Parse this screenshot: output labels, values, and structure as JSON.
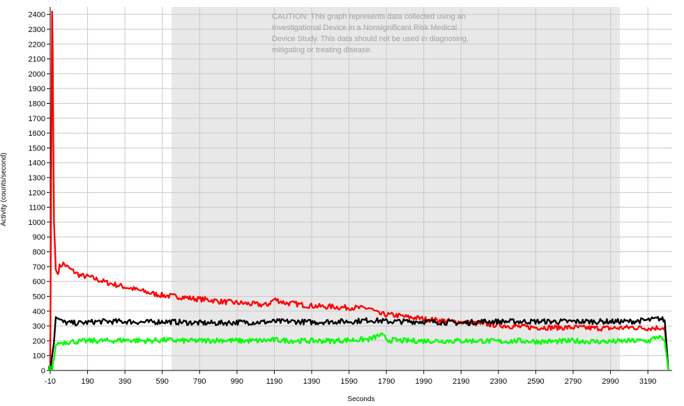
{
  "chart_data": {
    "type": "line",
    "title": "",
    "xlabel": "Seconds",
    "ylabel": "Activity (counts/second)",
    "xlim": [
      -10,
      3320
    ],
    "ylim": [
      0,
      2450
    ],
    "x_ticks": [
      -10,
      190,
      390,
      590,
      790,
      990,
      1190,
      1390,
      1590,
      1790,
      1990,
      2190,
      2390,
      2590,
      2790,
      2990,
      3190
    ],
    "y_ticks": [
      0,
      100,
      200,
      300,
      400,
      500,
      600,
      700,
      800,
      900,
      1000,
      1100,
      1200,
      1300,
      1400,
      1500,
      1600,
      1700,
      1800,
      1900,
      2000,
      2100,
      2200,
      2300,
      2400
    ],
    "grid": true,
    "shaded_region": {
      "x_start": 640,
      "x_end": 3040,
      "color": "#e8e8e8"
    },
    "annotation": "CAUTION: This graph represents data collected using an Investigational Device in a Nonsignificant Risk Medical Device Study. This data should not be used in diagnosing, mitigating or treating disease.",
    "series": [
      {
        "color": "#ff0000",
        "x": [
          -10,
          0,
          3,
          6,
          10,
          15,
          20,
          30,
          40,
          60,
          80,
          100,
          150,
          200,
          250,
          300,
          350,
          400,
          450,
          500,
          550,
          600,
          650,
          700,
          750,
          800,
          850,
          900,
          950,
          1000,
          1050,
          1100,
          1150,
          1190,
          1250,
          1300,
          1350,
          1400,
          1450,
          1500,
          1550,
          1600,
          1650,
          1700,
          1750,
          1800,
          1850,
          1900,
          1950,
          2000,
          2100,
          2200,
          2300,
          2400,
          2500,
          2600,
          2700,
          2800,
          2900,
          3000,
          3100,
          3200,
          3280,
          3300
        ],
        "y": [
          0,
          2420,
          2200,
          1700,
          1000,
          850,
          680,
          650,
          700,
          720,
          700,
          680,
          640,
          630,
          610,
          590,
          575,
          560,
          545,
          530,
          515,
          505,
          500,
          495,
          485,
          480,
          475,
          465,
          460,
          455,
          450,
          445,
          440,
          480,
          455,
          450,
          440,
          435,
          430,
          430,
          425,
          425,
          420,
          420,
          380,
          375,
          370,
          360,
          355,
          345,
          335,
          325,
          315,
          305,
          295,
          290,
          290,
          290,
          285,
          285,
          290,
          285,
          290,
          0
        ]
      },
      {
        "color": "#000000",
        "x": [
          -10,
          10,
          20,
          30,
          60,
          100,
          150,
          200,
          250,
          300,
          400,
          500,
          600,
          700,
          800,
          900,
          1000,
          1100,
          1200,
          1300,
          1400,
          1500,
          1600,
          1700,
          1800,
          1900,
          2000,
          2100,
          2200,
          2300,
          2400,
          2500,
          2600,
          2700,
          2800,
          2900,
          3000,
          3100,
          3200,
          3250,
          3280,
          3300
        ],
        "y": [
          0,
          190,
          360,
          350,
          325,
          320,
          320,
          325,
          330,
          330,
          330,
          325,
          330,
          325,
          320,
          320,
          325,
          325,
          330,
          330,
          325,
          330,
          330,
          340,
          330,
          330,
          330,
          325,
          320,
          330,
          330,
          330,
          330,
          330,
          330,
          330,
          330,
          330,
          340,
          350,
          340,
          0
        ]
      },
      {
        "color": "#00ff00",
        "x": [
          -10,
          0,
          10,
          20,
          40,
          60,
          100,
          150,
          200,
          300,
          400,
          500,
          600,
          700,
          800,
          900,
          1000,
          1100,
          1200,
          1300,
          1400,
          1500,
          1600,
          1700,
          1760,
          1800,
          1900,
          2000,
          2100,
          2200,
          2300,
          2400,
          2500,
          2600,
          2700,
          2800,
          2900,
          3000,
          3100,
          3200,
          3240,
          3280,
          3300
        ],
        "y": [
          0,
          10,
          80,
          170,
          185,
          190,
          195,
          195,
          200,
          200,
          205,
          200,
          205,
          200,
          200,
          205,
          200,
          200,
          205,
          200,
          200,
          200,
          205,
          210,
          240,
          205,
          200,
          200,
          200,
          200,
          200,
          195,
          200,
          195,
          195,
          200,
          195,
          195,
          200,
          200,
          230,
          200,
          0
        ]
      }
    ]
  }
}
